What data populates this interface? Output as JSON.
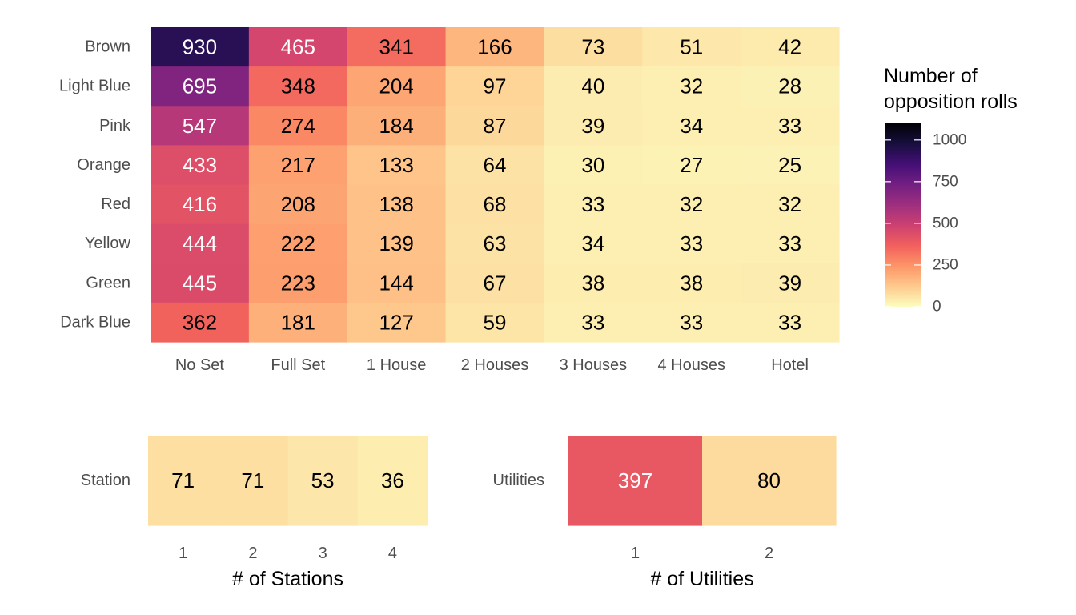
{
  "chart_data": [
    {
      "type": "heatmap",
      "rows": [
        "Brown",
        "Light Blue",
        "Pink",
        "Orange",
        "Red",
        "Yellow",
        "Green",
        "Dark Blue"
      ],
      "columns": [
        "No Set",
        "Full Set",
        "1 House",
        "2 Houses",
        "3 Houses",
        "4 Houses",
        "Hotel"
      ],
      "values": [
        [
          930,
          465,
          341,
          166,
          73,
          51,
          42
        ],
        [
          695,
          348,
          204,
          97,
          40,
          32,
          28
        ],
        [
          547,
          274,
          184,
          87,
          39,
          34,
          33
        ],
        [
          433,
          217,
          133,
          64,
          30,
          27,
          25
        ],
        [
          416,
          208,
          138,
          68,
          33,
          32,
          32
        ],
        [
          444,
          222,
          139,
          63,
          34,
          33,
          33
        ],
        [
          445,
          223,
          144,
          67,
          38,
          38,
          39
        ],
        [
          362,
          181,
          127,
          59,
          33,
          33,
          33
        ]
      ],
      "xlabel": "",
      "ylabel": ""
    },
    {
      "type": "heatmap",
      "rows": [
        "Station"
      ],
      "columns": [
        "1",
        "2",
        "3",
        "4"
      ],
      "values": [
        [
          71,
          71,
          53,
          36
        ]
      ],
      "xlabel": "# of Stations",
      "ylabel": ""
    },
    {
      "type": "heatmap",
      "rows": [
        "Utilities"
      ],
      "columns": [
        "1",
        "2"
      ],
      "values": [
        [
          397,
          80
        ]
      ],
      "xlabel": "# of Utilities",
      "ylabel": ""
    }
  ],
  "legend": {
    "title_lines": [
      "Number of",
      "opposition rolls"
    ],
    "ticks": [
      1000,
      750,
      500,
      250,
      0
    ],
    "range": [
      0,
      1100
    ],
    "palette": "magma",
    "colors": [
      "#FCFDBF",
      "#FEC98D",
      "#FD9567",
      "#F1605D",
      "#CD4071",
      "#9E2F7F",
      "#721F81",
      "#440F76",
      "#180F3E",
      "#000004"
    ]
  }
}
